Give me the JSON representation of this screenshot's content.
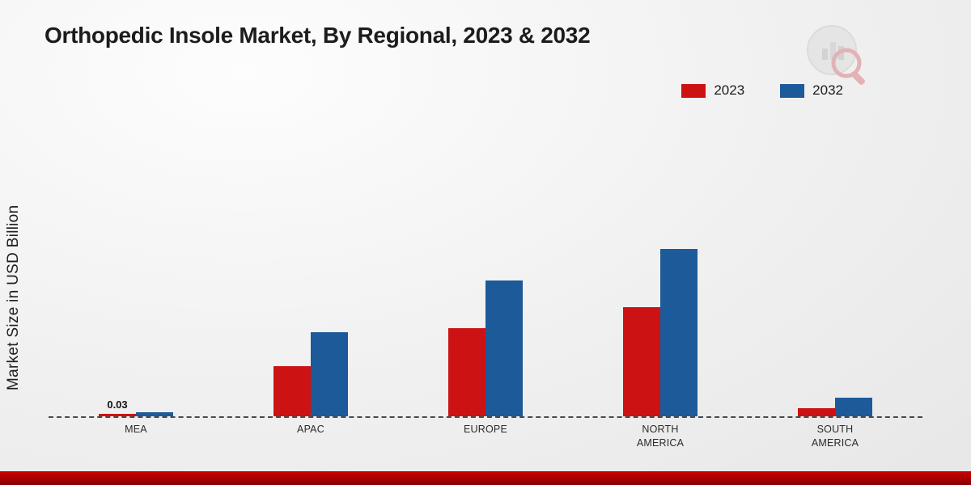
{
  "title": "Orthopedic Insole Market, By Regional, 2023 & 2032",
  "ylabel": "Market Size in USD Billion",
  "legend": [
    {
      "label": "2023",
      "color": "#cc1212"
    },
    {
      "label": "2032",
      "color": "#1c5a99"
    }
  ],
  "colors": {
    "series_2023": "#cc1212",
    "series_2032": "#1c5a99",
    "footer_strip": "#a30000",
    "baseline": "#4a4a4a"
  },
  "chart_data": {
    "type": "bar",
    "categories": [
      "MEA",
      "APAC",
      "EUROPE",
      "NORTH AMERICA",
      "SOUTH AMERICA"
    ],
    "series": [
      {
        "name": "2023",
        "color": "#cc1212",
        "values": [
          0.03,
          0.6,
          1.05,
          1.3,
          0.1
        ]
      },
      {
        "name": "2032",
        "color": "#1c5a99",
        "values": [
          0.05,
          1.0,
          1.62,
          2.0,
          0.22
        ]
      }
    ],
    "annotations": [
      {
        "category": "MEA",
        "series": "2023",
        "text": "0.03"
      }
    ],
    "title": "Orthopedic Insole Market, By Regional, 2023 & 2032",
    "xlabel": "",
    "ylabel": "Market Size in USD Billion",
    "ylim": [
      0,
      3.5
    ],
    "grid": false,
    "legend_position": "top-right",
    "baseline_style": "dashed"
  }
}
